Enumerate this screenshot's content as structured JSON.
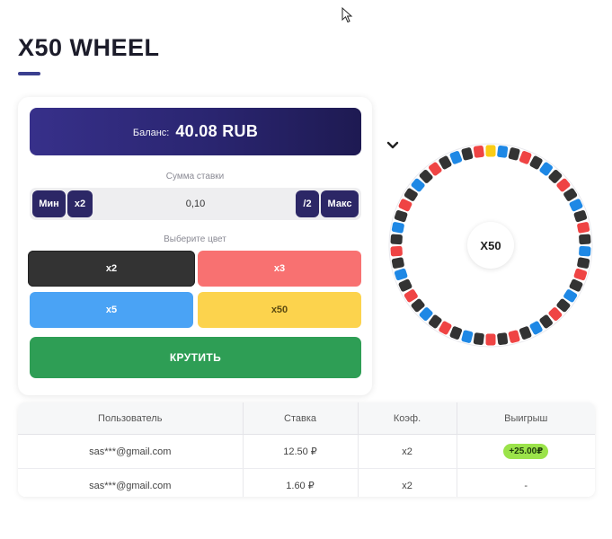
{
  "page": {
    "title": "X50 WHEEL"
  },
  "balance": {
    "label": "Баланс:",
    "value": "40.08 RUB"
  },
  "bet": {
    "section_label": "Сумма ставки",
    "value": "0,10",
    "min_label": "Мин",
    "double_label": "x2",
    "half_label": "/2",
    "max_label": "Макс"
  },
  "color_choice": {
    "section_label": "Выберите цвет",
    "options": [
      {
        "label": "x2",
        "color": "#333333",
        "text_color": "#ffffff"
      },
      {
        "label": "x3",
        "color": "#f87171",
        "text_color": "#ffffff"
      },
      {
        "label": "x5",
        "color": "#4aa3f5",
        "text_color": "#ffffff"
      },
      {
        "label": "x50",
        "color": "#fcd34d",
        "text_color": "#5b4a10"
      }
    ]
  },
  "spin": {
    "label": "КРУТИТЬ",
    "color": "#2e9e55"
  },
  "wheel": {
    "center_label": "X50",
    "segment_colors": {
      "x2": "#333333",
      "x3": "#ef4444",
      "x5": "#1e88e5",
      "x50": "#facc15"
    }
  },
  "history": {
    "headers": [
      "Пользователь",
      "Ставка",
      "Коэф.",
      "Выигрыш"
    ],
    "rows": [
      {
        "user": "sas***@gmail.com",
        "bet": "12.50 ₽",
        "coef": "x2",
        "win": "+25.00₽",
        "won": true
      },
      {
        "user": "sas***@gmail.com",
        "bet": "1.60 ₽",
        "coef": "x2",
        "win": "-",
        "won": false
      }
    ]
  }
}
